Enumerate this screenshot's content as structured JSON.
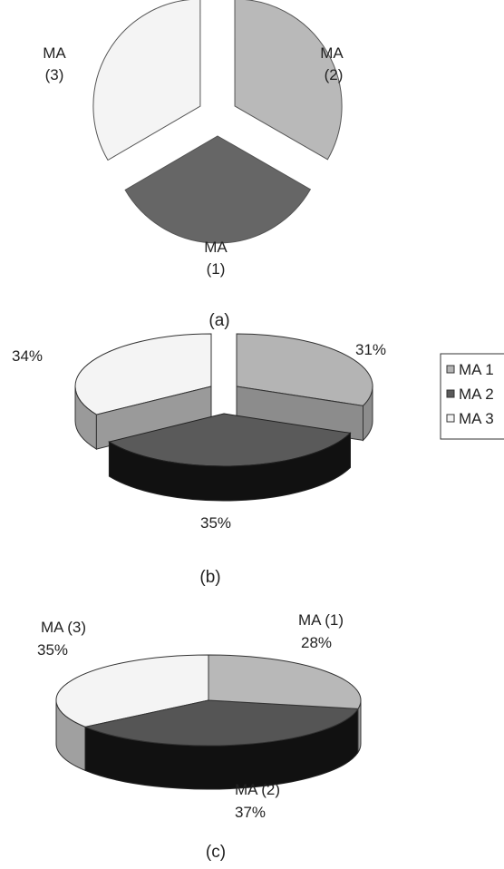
{
  "chart_data": [
    {
      "type": "pie",
      "caption": "(a)",
      "categories": [
        "MA (1)",
        "MA (2)",
        "MA (3)"
      ],
      "values": [
        33.3,
        33.3,
        33.4
      ],
      "slice_labels": [
        {
          "line1": "MA",
          "line2": "(1)"
        },
        {
          "line1": "MA",
          "line2": "(2)"
        },
        {
          "line1": "MA",
          "line2": "(3)"
        }
      ],
      "colors": [
        "#666666",
        "#b9b9b9",
        "#f4f4f4"
      ],
      "exploded": true
    },
    {
      "type": "pie",
      "caption": "(b)",
      "categories": [
        "MA 1",
        "MA 2",
        "MA 3"
      ],
      "values": [
        31,
        35,
        34
      ],
      "value_labels": [
        "31%",
        "35%",
        "34%"
      ],
      "legend": [
        "MA 1",
        "MA 2",
        "MA 3"
      ],
      "legend_position": "right",
      "colors": [
        "#b4b4b4",
        "#5a5a5a",
        "#f4f4f4"
      ],
      "three_d": true,
      "exploded": true
    },
    {
      "type": "pie",
      "caption": "(c)",
      "categories": [
        "MA (1)",
        "MA (2)",
        "MA (3)"
      ],
      "values": [
        28,
        37,
        35
      ],
      "slice_labels": [
        {
          "line1": "MA (1)",
          "line2": "28%"
        },
        {
          "line1": "MA (2)",
          "line2": "37%"
        },
        {
          "line1": "MA (3)",
          "line2": "35%"
        }
      ],
      "colors": [
        "#b8b8b8",
        "#555555",
        "#f4f4f4"
      ],
      "three_d": true,
      "exploded": false
    }
  ]
}
